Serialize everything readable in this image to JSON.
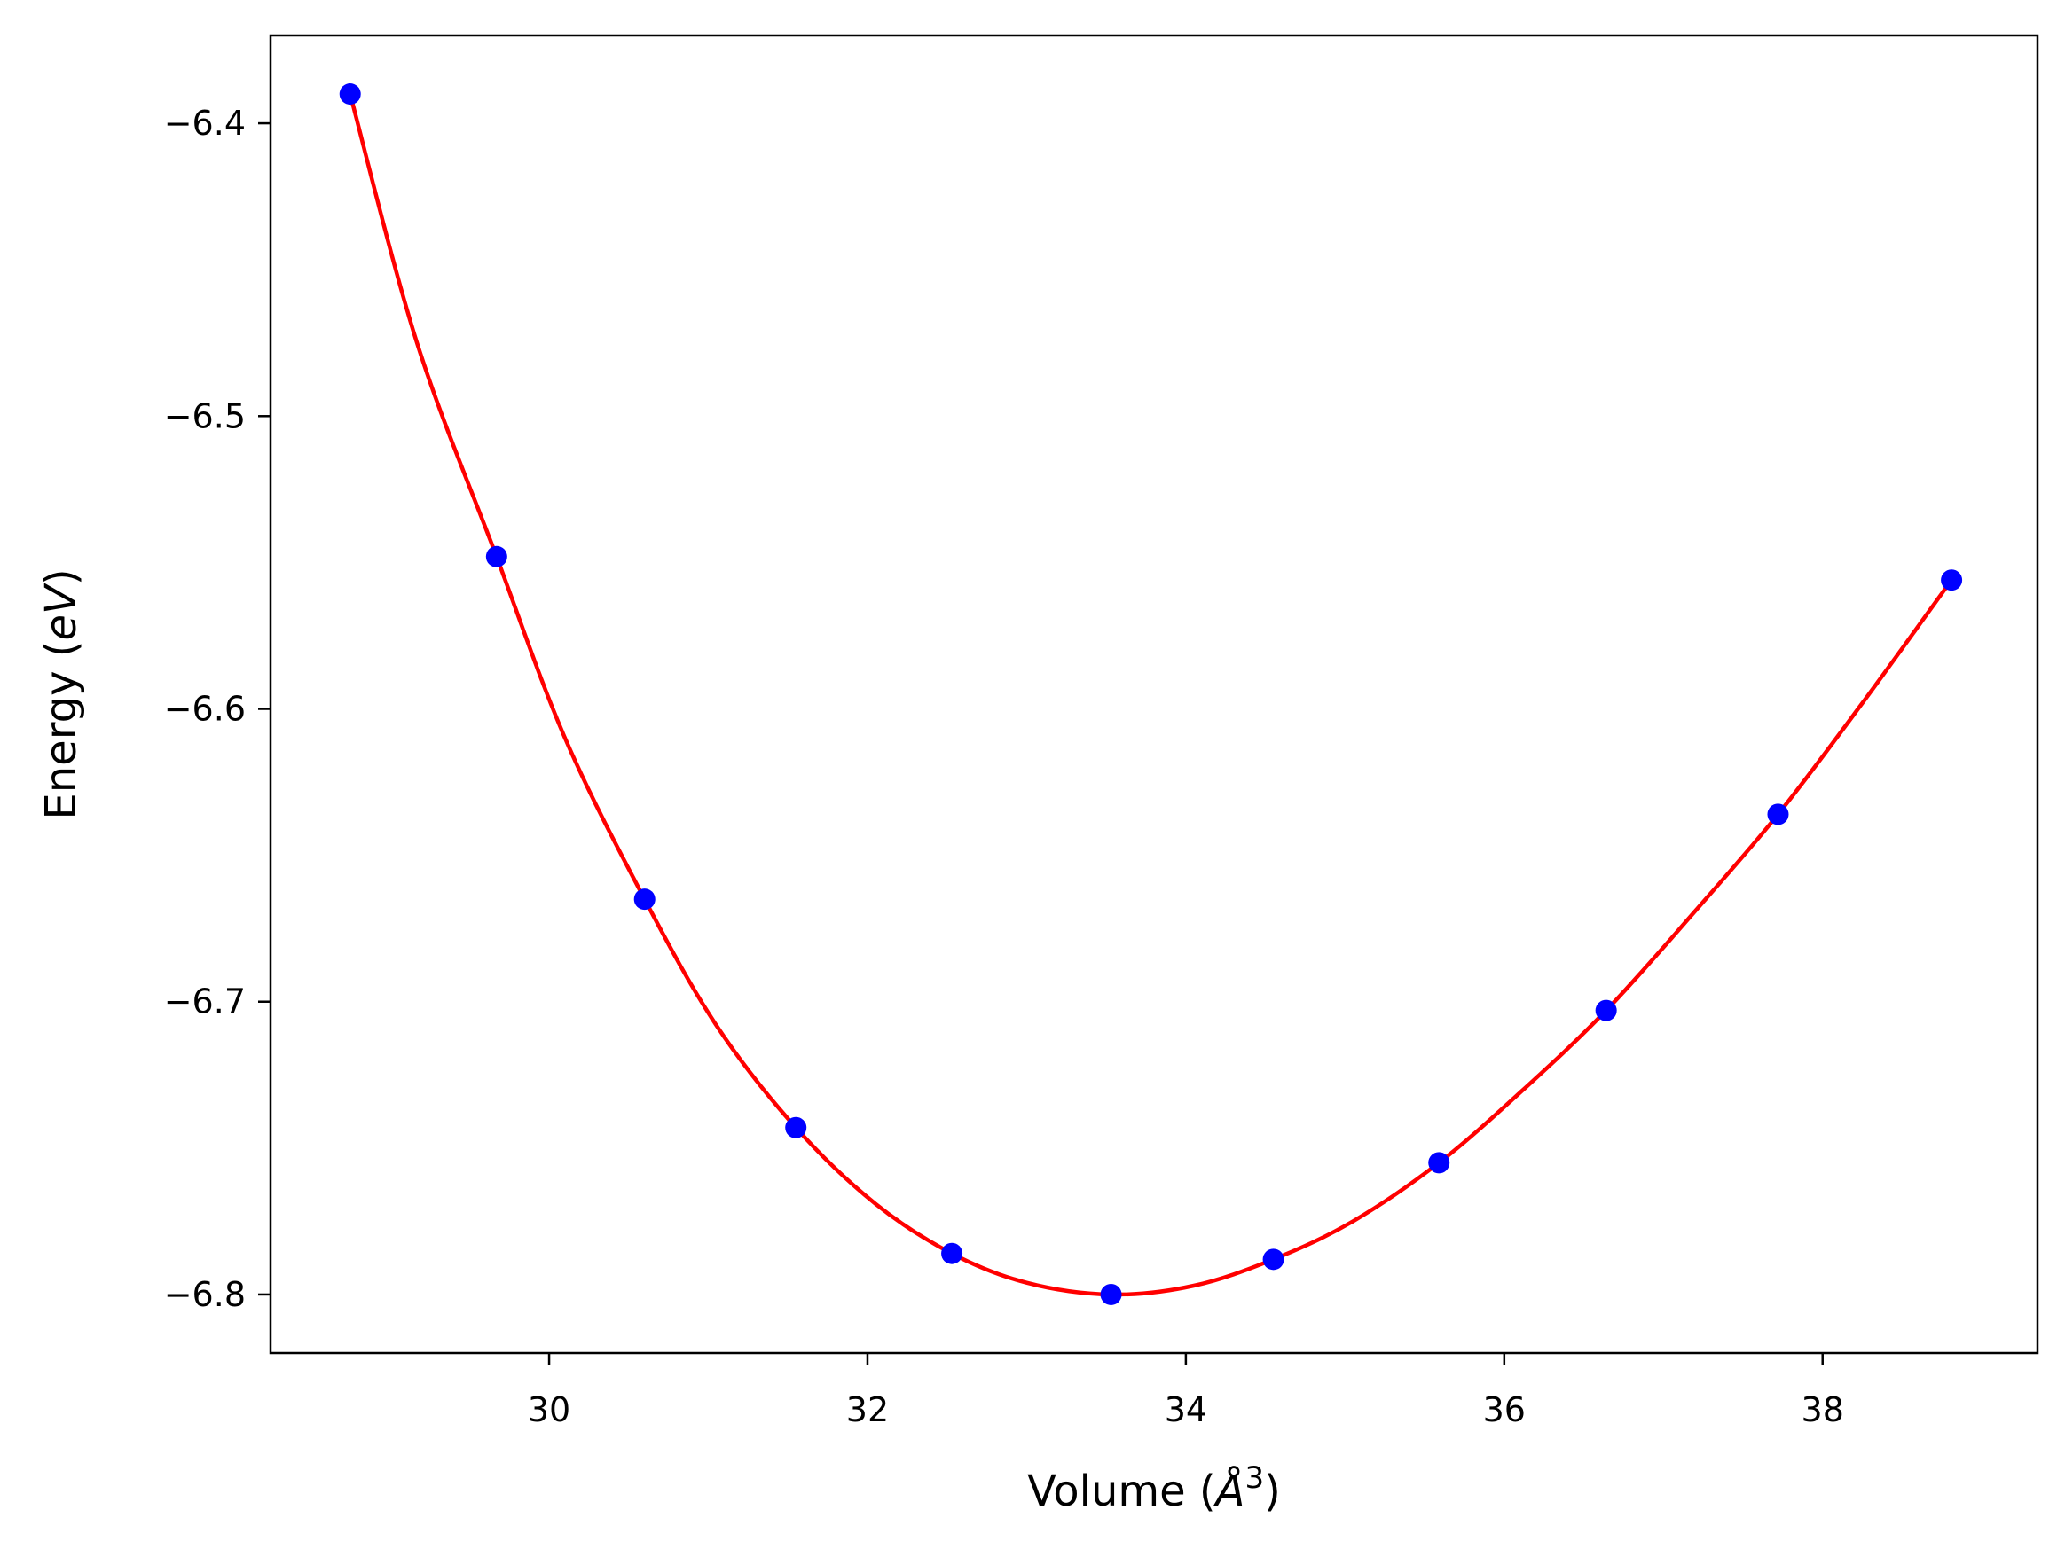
{
  "chart_data": {
    "type": "scatter",
    "title": "",
    "xlabel": "Volume",
    "xlabel_unit": "Å",
    "xlabel_unit_exponent": "3",
    "ylabel": "Energy",
    "ylabel_unit": "eV",
    "xlim": [
      28.25,
      39.35
    ],
    "ylim": [
      -6.82,
      -6.37
    ],
    "xticks": [
      30,
      32,
      34,
      36,
      38
    ],
    "yticks": [
      -6.4,
      -6.5,
      -6.6,
      -6.7,
      -6.8
    ],
    "xtick_labels": [
      "30",
      "32",
      "34",
      "36",
      "38"
    ],
    "ytick_labels": [
      "−6.4",
      "−6.5",
      "−6.6",
      "−6.7",
      "−6.8"
    ],
    "grid": false,
    "series": [
      {
        "kind": "points",
        "color": "#0000ff",
        "x": [
          28.75,
          29.67,
          30.6,
          31.55,
          32.53,
          33.53,
          34.55,
          35.59,
          36.64,
          37.72,
          38.81
        ],
        "y": [
          -6.39,
          -6.548,
          -6.665,
          -6.743,
          -6.786,
          -6.8,
          -6.788,
          -6.755,
          -6.703,
          -6.636,
          -6.556
        ]
      },
      {
        "kind": "fit-curve",
        "color": "#ff0000",
        "x": [
          28.75,
          29.17,
          29.67,
          30.1,
          30.6,
          31.05,
          31.55,
          32.05,
          32.53,
          33.0,
          33.53,
          34.05,
          34.55,
          35.05,
          35.59,
          36.1,
          36.64,
          37.2,
          37.72,
          38.25,
          38.81
        ],
        "y": [
          -6.39,
          -6.475,
          -6.548,
          -6.61,
          -6.665,
          -6.708,
          -6.743,
          -6.769,
          -6.786,
          -6.796,
          -6.8,
          -6.797,
          -6.788,
          -6.775,
          -6.755,
          -6.731,
          -6.703,
          -6.669,
          -6.636,
          -6.598,
          -6.556
        ]
      }
    ]
  }
}
